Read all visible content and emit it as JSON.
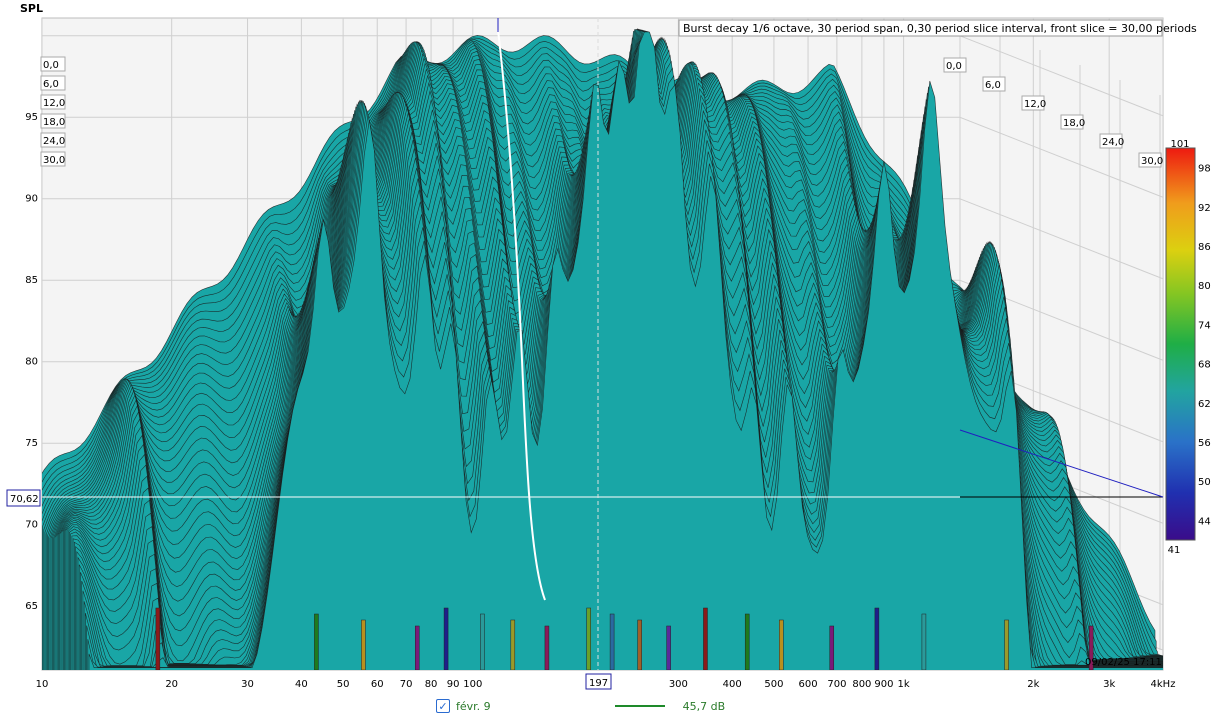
{
  "chart_data": {
    "type": "waterfall-3d",
    "title": "Burst decay 1/6 octave, 30 period span, 0,30 period slice interval,  front slice = 30,00 periods",
    "ylabel": "SPL",
    "xlabel": "Hz",
    "y_ticks": [
      "65",
      "70",
      "75",
      "80",
      "85",
      "90",
      "95"
    ],
    "ylim": [
      61,
      101
    ],
    "x_ticks": [
      "10",
      "20",
      "30",
      "40",
      "50",
      "60",
      "70",
      "80",
      "90",
      "100",
      "300",
      "400",
      "500",
      "600",
      "700",
      "800",
      "900",
      "1k",
      "2k",
      "3k",
      "4kHz"
    ],
    "x_log_range": [
      10,
      4000
    ],
    "depth_ticks": [
      "0,0",
      "6,0",
      "12,0",
      "18,0",
      "24,0",
      "30,0"
    ],
    "colorbar_ticks": [
      "101",
      "98",
      "92",
      "86",
      "80",
      "74",
      "68",
      "62",
      "56",
      "50",
      "44",
      "41"
    ],
    "colorbar_range": [
      41,
      101
    ],
    "cursor_spl": "70,62",
    "cursor_freq": "197",
    "timestamp": "09/02/25 17:11",
    "series": [
      {
        "name": "févr. 9",
        "value_label": "45,7 dB",
        "color": "#1e8a2a",
        "checked": true
      }
    ],
    "front_slice_peaks_hz": [
      15,
      35,
      45,
      60,
      70,
      85,
      100,
      120,
      150,
      170,
      197,
      230,
      280,
      350,
      420,
      550,
      700,
      900,
      1400,
      2200
    ]
  }
}
